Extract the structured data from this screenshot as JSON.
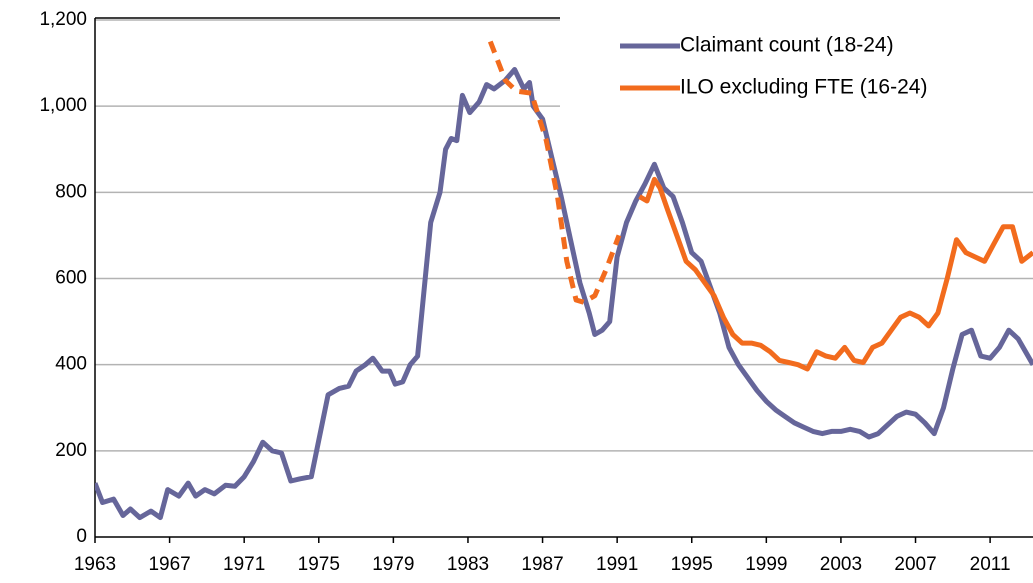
{
  "chart_data": {
    "type": "line",
    "xlim": [
      1963,
      2013.3
    ],
    "xticks": [
      1963,
      1967,
      1971,
      1975,
      1979,
      1983,
      1987,
      1991,
      1995,
      1999,
      2003,
      2007,
      2011
    ],
    "ylim": [
      0,
      1200
    ],
    "yticks": [
      0,
      200,
      400,
      600,
      800,
      {
        "value": 1000,
        "label": "1,000"
      },
      {
        "value": 1200,
        "label": "1,200"
      }
    ],
    "grid": true,
    "legend": "top-right",
    "series": [
      {
        "name": "Claimant count (18-24)",
        "color": "#66669a",
        "x": [
          1963,
          1963.4,
          1964,
          1964.5,
          1964.9,
          1965.4,
          1966,
          1966.5,
          1966.9,
          1967.5,
          1968,
          1968.4,
          1968.9,
          1969.4,
          1970,
          1970.5,
          1971,
          1971.5,
          1972,
          1972.5,
          1973,
          1973.5,
          1974,
          1974.6,
          1975.5,
          1976.1,
          1976.6,
          1977,
          1977.5,
          1977.9,
          1978.4,
          1978.8,
          1979.1,
          1979.5,
          1979.9,
          1980.3,
          1981,
          1981.5,
          1981.8,
          1982.1,
          1982.4,
          1982.7,
          1983.1,
          1983.6,
          1984,
          1984.4,
          1985,
          1985.5,
          1986,
          1986.3,
          1986.5,
          1987,
          1987.5,
          1988,
          1988.5,
          1989,
          1989.5,
          1989.8,
          1990.2,
          1990.6,
          1991,
          1991.5,
          1992,
          1992.5,
          1993,
          1993.5,
          1994,
          1994.5,
          1995,
          1995.5,
          1996,
          1996.5,
          1997,
          1997.5,
          1998,
          1998.5,
          1999,
          1999.5,
          2000,
          2000.5,
          2001,
          2001.5,
          2002,
          2002.5,
          2003,
          2003.5,
          2004,
          2004.5,
          2005,
          2005.5,
          2006,
          2006.5,
          2007,
          2007.5,
          2008,
          2008.5,
          2009,
          2009.5,
          2010,
          2010.5,
          2011,
          2011.5,
          2012,
          2012.5,
          2013.3
        ],
        "values": [
          125,
          80,
          88,
          50,
          65,
          45,
          60,
          45,
          110,
          95,
          125,
          95,
          110,
          100,
          120,
          118,
          140,
          175,
          220,
          200,
          195,
          130,
          135,
          140,
          330,
          345,
          350,
          385,
          400,
          415,
          385,
          385,
          355,
          360,
          400,
          420,
          730,
          800,
          900,
          925,
          920,
          1025,
          985,
          1010,
          1050,
          1040,
          1060,
          1085,
          1040,
          1055,
          1000,
          970,
          880,
          790,
          690,
          590,
          520,
          470,
          480,
          500,
          650,
          730,
          780,
          820,
          865,
          810,
          790,
          730,
          660,
          640,
          580,
          520,
          440,
          400,
          370,
          340,
          315,
          295,
          280,
          265,
          255,
          245,
          240,
          245,
          245,
          250,
          245,
          232,
          240,
          260,
          280,
          290,
          285,
          265,
          240,
          300,
          390,
          470,
          480,
          420,
          415,
          440,
          480,
          460,
          400
        ]
      },
      {
        "name": "ILO excluding FTE (16-24)",
        "color": "#f26b1d",
        "x": [
          1984.2,
          1985,
          1985.6,
          1986.4,
          1987.2,
          1987.8,
          1988.3,
          1988.8,
          1989.2,
          1989.8,
          1990.4,
          1991.1,
          1992.2,
          1992.6,
          1993,
          1993.3,
          1993.7,
          1994.2,
          1994.7,
          1995.2,
          1995.7,
          1996.2,
          1996.7,
          1997.2,
          1997.7,
          1998.2,
          1998.7,
          1999.2,
          1999.7,
          2000.2,
          2000.7,
          2001.2,
          2001.7,
          2002.2,
          2002.7,
          2003.2,
          2003.7,
          2004.2,
          2004.7,
          2005.2,
          2005.7,
          2006.2,
          2006.7,
          2007.2,
          2007.7,
          2008.2,
          2008.7,
          2009.2,
          2009.7,
          2010.2,
          2010.7,
          2011.2,
          2011.7,
          2012.2,
          2012.7,
          2013.3
        ],
        "values": [
          1150,
          1060,
          1035,
          1030,
          920,
          790,
          640,
          550,
          545,
          560,
          620,
          700,
          790,
          780,
          830,
          810,
          760,
          700,
          640,
          620,
          590,
          560,
          510,
          470,
          450,
          450,
          445,
          430,
          410,
          405,
          400,
          390,
          430,
          420,
          415,
          440,
          410,
          405,
          440,
          450,
          480,
          510,
          520,
          510,
          490,
          520,
          600,
          690,
          660,
          650,
          640,
          680,
          720,
          720,
          640,
          660
        ],
        "dashed": [
          true,
          true,
          true,
          true,
          true,
          true,
          true,
          true,
          true,
          true,
          true,
          true,
          false,
          false,
          false,
          false,
          false,
          false,
          false,
          false,
          false,
          false,
          false,
          false,
          false,
          false,
          false,
          false,
          false,
          false,
          false,
          false,
          false,
          false,
          false,
          false,
          false,
          false,
          false,
          false,
          false,
          false,
          false,
          false,
          false,
          false,
          false,
          false,
          false,
          false,
          false,
          false,
          false,
          false,
          false,
          false
        ]
      }
    ]
  }
}
